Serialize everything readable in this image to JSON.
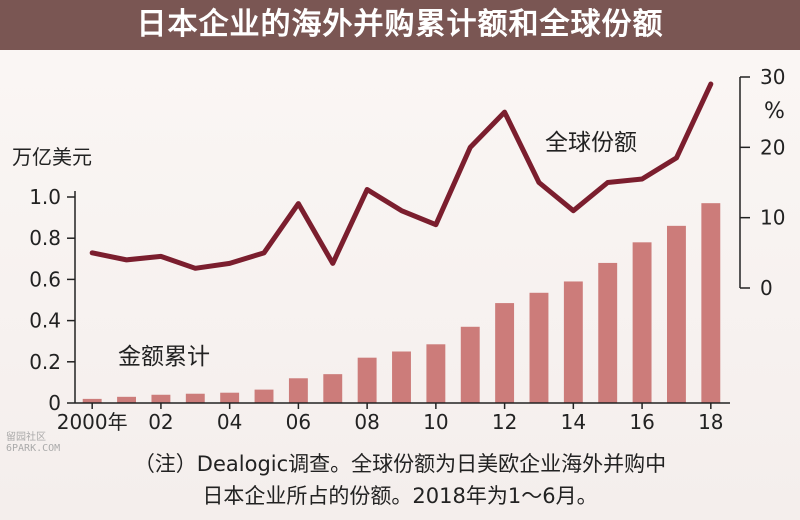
{
  "title": "日本企业的海外并购累计额和全球份额",
  "watermark": {
    "top": "留园社区",
    "bottom": "6PARK.COM"
  },
  "footnote": {
    "line1": "（注）Dealogic调查。全球份额为日美欧企业海外并购中",
    "line2": "日本企业所占的份额。2018年为1～6月。"
  },
  "chart_data": {
    "type": "bar+line",
    "left_axis": {
      "unit_label": "万亿美元",
      "ticks": [
        "0",
        "0.2",
        "0.4",
        "0.6",
        "0.8",
        "1.0"
      ],
      "range": [
        0,
        1.0
      ]
    },
    "right_axis": {
      "unit_label": "%",
      "ticks": [
        "0",
        "10",
        "20",
        "30"
      ],
      "range": [
        0,
        30
      ]
    },
    "x_tick_labels": [
      "2000年",
      "02",
      "04",
      "06",
      "08",
      "10",
      "12",
      "14",
      "16",
      "18"
    ],
    "years": [
      2000,
      2001,
      2002,
      2003,
      2004,
      2005,
      2006,
      2007,
      2008,
      2009,
      2010,
      2011,
      2012,
      2013,
      2014,
      2015,
      2016,
      2017,
      2018
    ],
    "series": [
      {
        "name": "金额累计",
        "type": "bar",
        "axis": "left",
        "color": "#cc7c7a",
        "values": [
          0.02,
          0.03,
          0.04,
          0.045,
          0.05,
          0.065,
          0.12,
          0.14,
          0.22,
          0.25,
          0.285,
          0.37,
          0.485,
          0.535,
          0.59,
          0.68,
          0.78,
          0.86,
          0.97
        ]
      },
      {
        "name": "全球份额",
        "type": "line",
        "axis": "right",
        "color": "#7b1e2e",
        "values": [
          5,
          4,
          4.5,
          2.8,
          3.5,
          5,
          12,
          3.5,
          14,
          11,
          9,
          20,
          25,
          15,
          11,
          15,
          15.5,
          18.5,
          29
        ]
      }
    ]
  }
}
